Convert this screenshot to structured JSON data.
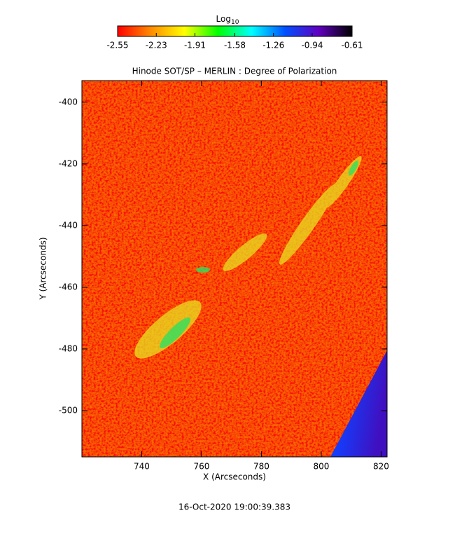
{
  "chart_data": {
    "type": "heatmap",
    "title": "Hinode SOT/SP – MERLIN : Degree of Polarization",
    "x_label": "X (Arcseconds)",
    "y_label": "Y (Arcseconds)",
    "xlim": [
      720,
      822
    ],
    "xticks": [
      740,
      760,
      780,
      800,
      820
    ],
    "ylim": [
      -515,
      -393
    ],
    "yticks": [
      -400,
      -420,
      -440,
      -460,
      -480,
      -500
    ],
    "colorbar_label": "Log",
    "colorbar_label_subscript": "10",
    "colorbar_lim": [
      -2.55,
      -0.61
    ],
    "colorbar_ticks": [
      -2.55,
      -2.23,
      -1.91,
      -1.58,
      -1.26,
      -0.94,
      -0.61
    ],
    "colormap": [
      "#ff0000",
      "#ff8c00",
      "#ffff00",
      "#00ff00",
      "#00ffff",
      "#0050ff",
      "#6000c0",
      "#000000"
    ],
    "footer": "16-Oct-2020 19:00:39.383"
  }
}
